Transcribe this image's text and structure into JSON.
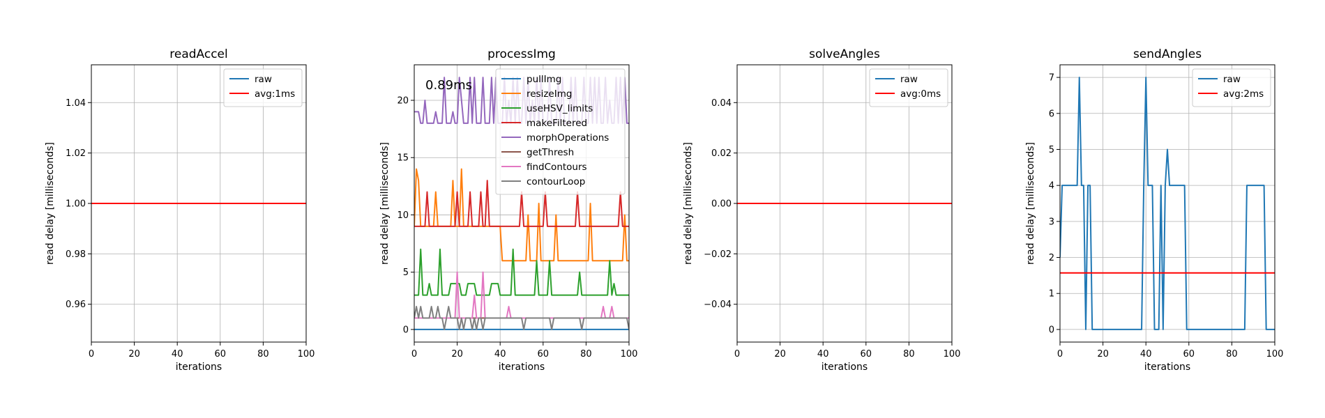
{
  "chart_data": [
    {
      "type": "line",
      "title": "readAccel",
      "xlabel": "iterations",
      "ylabel": "read delay [milliseconds]",
      "xlim": [
        0,
        100
      ],
      "ylim": [
        0.945,
        1.055
      ],
      "xticks": [
        0,
        20,
        40,
        60,
        80,
        100
      ],
      "yticks": [
        0.96,
        0.98,
        1.0,
        1.02,
        1.04
      ],
      "ytick_labels": [
        "0.96",
        "0.98",
        "1.00",
        "1.02",
        "1.04"
      ],
      "grid": true,
      "legend_position": "top-right",
      "series": [
        {
          "name": "raw",
          "color": "#1f77b4",
          "x": [],
          "values": []
        },
        {
          "name": "avg:1ms",
          "color": "#ff0000",
          "hline": 1.0
        }
      ]
    },
    {
      "type": "line",
      "title": "processImg",
      "xlabel": "iterations",
      "ylabel": "read delay [milliseconds]",
      "xlim": [
        0,
        100
      ],
      "ylim": [
        -1.1,
        23.1
      ],
      "xticks": [
        0,
        20,
        40,
        60,
        80,
        100
      ],
      "yticks": [
        0,
        5,
        10,
        15,
        20
      ],
      "ytick_labels": [
        "0",
        "5",
        "10",
        "15",
        "20"
      ],
      "grid": true,
      "legend_position": "top-right",
      "annotation": "0.89ms",
      "series": [
        {
          "name": "pullImg",
          "color": "#1f77b4",
          "values": [
            0,
            0,
            0,
            0,
            0,
            0,
            0,
            0,
            0,
            0,
            0,
            0,
            0,
            0,
            0,
            0,
            0,
            0,
            0,
            0,
            0,
            0,
            0,
            0,
            0,
            0,
            0,
            0,
            0,
            0,
            0,
            0,
            0,
            0,
            0,
            0,
            0,
            0,
            0,
            0,
            0,
            0,
            0,
            0,
            0,
            0,
            0,
            0,
            0,
            0,
            0,
            0,
            0,
            0,
            0,
            0,
            0,
            0,
            0,
            0,
            0,
            0,
            0,
            0,
            0,
            0,
            0,
            0,
            0,
            0,
            0,
            0,
            0,
            0,
            0,
            0,
            0,
            0,
            0,
            0,
            0,
            0,
            0,
            0,
            0,
            0,
            0,
            0,
            0,
            0,
            0,
            0,
            0,
            0,
            0,
            0,
            0,
            0,
            0,
            0,
            0
          ]
        },
        {
          "name": "resizeImg",
          "color": "#ff7f0e",
          "values": [
            9,
            14,
            13,
            9,
            9,
            9,
            9,
            9,
            9,
            9,
            12,
            9,
            9,
            9,
            9,
            9,
            9,
            9,
            13,
            9,
            9,
            9,
            14,
            9,
            9,
            9,
            9,
            9,
            9,
            9,
            9,
            9,
            9,
            9,
            9,
            9,
            9,
            9,
            9,
            9,
            9,
            6,
            6,
            6,
            6,
            6,
            6,
            6,
            6,
            6,
            6,
            6,
            6,
            10,
            6,
            6,
            6,
            6,
            11,
            6,
            6,
            6,
            6,
            6,
            6,
            6,
            10,
            6,
            6,
            6,
            6,
            6,
            6,
            6,
            6,
            6,
            6,
            6,
            6,
            6,
            6,
            6,
            11,
            6,
            6,
            6,
            6,
            6,
            6,
            6,
            6,
            6,
            6,
            6,
            6,
            6,
            6,
            6,
            10,
            6,
            6
          ]
        },
        {
          "name": "useHSV_limits",
          "color": "#2ca02c",
          "values": [
            3,
            3,
            3,
            7,
            3,
            3,
            3,
            4,
            3,
            3,
            3,
            3,
            7,
            3,
            3,
            3,
            3,
            4,
            4,
            4,
            4,
            4,
            3,
            3,
            3,
            4,
            4,
            4,
            4,
            3,
            3,
            3,
            3,
            3,
            3,
            3,
            4,
            4,
            4,
            4,
            3,
            3,
            3,
            3,
            3,
            3,
            7,
            3,
            3,
            3,
            3,
            3,
            3,
            3,
            3,
            3,
            3,
            6,
            3,
            3,
            3,
            3,
            3,
            6,
            3,
            3,
            3,
            3,
            3,
            3,
            3,
            3,
            3,
            3,
            3,
            3,
            3,
            5,
            3,
            3,
            3,
            3,
            3,
            3,
            3,
            3,
            3,
            3,
            3,
            3,
            3,
            6,
            3,
            4,
            3,
            3,
            3,
            3,
            3,
            3,
            3
          ]
        },
        {
          "name": "makeFiltered",
          "color": "#d62728",
          "values": [
            9,
            9,
            9,
            9,
            9,
            9,
            12,
            9,
            9,
            9,
            9,
            9,
            9,
            9,
            9,
            9,
            9,
            9,
            9,
            9,
            12,
            9,
            9,
            9,
            9,
            9,
            12,
            9,
            9,
            9,
            9,
            12,
            9,
            9,
            13,
            9,
            9,
            9,
            9,
            9,
            9,
            9,
            9,
            9,
            9,
            9,
            9,
            9,
            9,
            9,
            12,
            9,
            9,
            9,
            9,
            9,
            9,
            9,
            9,
            9,
            9,
            12,
            9,
            9,
            9,
            9,
            9,
            9,
            9,
            9,
            9,
            9,
            9,
            9,
            9,
            9,
            12,
            9,
            9,
            9,
            9,
            9,
            9,
            9,
            9,
            9,
            9,
            9,
            9,
            9,
            9,
            9,
            9,
            9,
            9,
            9,
            12,
            9,
            9,
            9,
            9
          ]
        },
        {
          "name": "morphOperations",
          "color": "#9467bd",
          "values": [
            19,
            19,
            19,
            18,
            18,
            20,
            18,
            18,
            18,
            18,
            19,
            18,
            18,
            18,
            22,
            18,
            18,
            18,
            19,
            18,
            18,
            22,
            20,
            18,
            18,
            18,
            22,
            18,
            22,
            18,
            18,
            18,
            22,
            18,
            18,
            18,
            22,
            18,
            22,
            18,
            18,
            18,
            22,
            18,
            20,
            18,
            22,
            18,
            22,
            18,
            18,
            22,
            18,
            22,
            18,
            20,
            18,
            22,
            18,
            22,
            18,
            18,
            18,
            22,
            18,
            18,
            18,
            22,
            18,
            22,
            18,
            18,
            18,
            22,
            18,
            22,
            18,
            18,
            18,
            22,
            18,
            18,
            22,
            18,
            22,
            18,
            22,
            18,
            18,
            22,
            18,
            20,
            18,
            18,
            22,
            18,
            22,
            18,
            22,
            18,
            18
          ]
        },
        {
          "name": "getThresh",
          "color": "#8c564b",
          "values": [
            1,
            1,
            1,
            1,
            1,
            1,
            1,
            1,
            1,
            1,
            1,
            1,
            1,
            1,
            1,
            1,
            1,
            1,
            1,
            1,
            1,
            1,
            1,
            1,
            1,
            1,
            1,
            1,
            1,
            1,
            1,
            1,
            1,
            1,
            1,
            1,
            1,
            1,
            1,
            1,
            1,
            1,
            1,
            1,
            1,
            1,
            1,
            1,
            1,
            1,
            1,
            1,
            1,
            1,
            1,
            1,
            1,
            1,
            1,
            1,
            1,
            1,
            1,
            1,
            1,
            1,
            1,
            1,
            1,
            1,
            1,
            1,
            1,
            1,
            1,
            1,
            1,
            1,
            1,
            1,
            1,
            1,
            1,
            1,
            1,
            1,
            1,
            1,
            1,
            1,
            1,
            1,
            1,
            1,
            1,
            1,
            1,
            1,
            1,
            1,
            1
          ]
        },
        {
          "name": "findContours",
          "color": "#e377c2",
          "values": [
            1,
            1,
            1,
            1,
            1,
            1,
            1,
            1,
            1,
            1,
            1,
            1,
            1,
            1,
            1,
            1,
            1,
            1,
            1,
            1,
            5,
            1,
            1,
            1,
            1,
            1,
            1,
            1,
            3,
            1,
            1,
            1,
            5,
            1,
            1,
            1,
            1,
            1,
            1,
            1,
            1,
            1,
            1,
            1,
            2,
            1,
            1,
            1,
            1,
            1,
            1,
            1,
            1,
            1,
            1,
            1,
            1,
            1,
            1,
            1,
            1,
            1,
            1,
            1,
            1,
            1,
            1,
            1,
            1,
            1,
            1,
            1,
            1,
            1,
            1,
            1,
            1,
            1,
            1,
            1,
            1,
            1,
            1,
            1,
            1,
            1,
            1,
            1,
            2,
            1,
            1,
            1,
            2,
            1,
            1,
            1,
            1,
            1,
            1,
            1,
            1
          ]
        },
        {
          "name": "contourLoop",
          "color": "#7f7f7f",
          "values": [
            1,
            2,
            1,
            2,
            1,
            1,
            1,
            1,
            2,
            1,
            1,
            2,
            1,
            1,
            0,
            1,
            2,
            1,
            1,
            1,
            1,
            0,
            1,
            0,
            1,
            1,
            1,
            0,
            1,
            0,
            1,
            1,
            0,
            1,
            1,
            1,
            1,
            1,
            1,
            1,
            1,
            1,
            1,
            1,
            1,
            1,
            1,
            1,
            1,
            1,
            1,
            0,
            1,
            1,
            1,
            1,
            1,
            1,
            1,
            1,
            1,
            1,
            1,
            1,
            0,
            1,
            1,
            1,
            1,
            1,
            1,
            1,
            1,
            1,
            1,
            1,
            1,
            1,
            0,
            1,
            1,
            1,
            1,
            1,
            1,
            1,
            1,
            1,
            1,
            1,
            1,
            1,
            1,
            1,
            1,
            1,
            1,
            1,
            1,
            1,
            0
          ]
        }
      ]
    },
    {
      "type": "line",
      "title": "solveAngles",
      "xlabel": "iterations",
      "ylabel": "read delay [milliseconds]",
      "xlim": [
        0,
        100
      ],
      "ylim": [
        -0.055,
        0.055
      ],
      "xticks": [
        0,
        20,
        40,
        60,
        80,
        100
      ],
      "yticks": [
        -0.04,
        -0.02,
        0.0,
        0.02,
        0.04
      ],
      "ytick_labels": [
        "−0.04",
        "−0.02",
        "0.00",
        "0.02",
        "0.04"
      ],
      "grid": true,
      "legend_position": "top-right",
      "series": [
        {
          "name": "raw",
          "color": "#1f77b4",
          "x": [],
          "values": []
        },
        {
          "name": "avg:0ms",
          "color": "#ff0000",
          "hline": 0.0
        }
      ]
    },
    {
      "type": "line",
      "title": "sendAngles",
      "xlabel": "iterations",
      "ylabel": "read delay [milliseconds]",
      "xlim": [
        0,
        100
      ],
      "ylim": [
        -0.35,
        7.35
      ],
      "xticks": [
        0,
        20,
        40,
        60,
        80,
        100
      ],
      "yticks": [
        0,
        1,
        2,
        3,
        4,
        5,
        6,
        7
      ],
      "ytick_labels": [
        "0",
        "1",
        "2",
        "3",
        "4",
        "5",
        "6",
        "7"
      ],
      "grid": true,
      "legend_position": "top-right",
      "series": [
        {
          "name": "raw",
          "color": "#1f77b4",
          "x": [
            0,
            1,
            2,
            3,
            4,
            5,
            6,
            7,
            8,
            9,
            10,
            11,
            12,
            13,
            14,
            15,
            16,
            17,
            18,
            19,
            20,
            21,
            22,
            23,
            24,
            25,
            26,
            27,
            28,
            29,
            30,
            31,
            32,
            33,
            34,
            35,
            36,
            37,
            38,
            39,
            40,
            41,
            42,
            43,
            44,
            45,
            46,
            47,
            48,
            49,
            50,
            51,
            52,
            53,
            54,
            55,
            56,
            57,
            58,
            59,
            60,
            61,
            62,
            63,
            64,
            65,
            66,
            67,
            68,
            69,
            70,
            71,
            72,
            73,
            74,
            75,
            76,
            77,
            78,
            79,
            80,
            81,
            82,
            83,
            84,
            85,
            86,
            87,
            88,
            89,
            90,
            91,
            92,
            93,
            94,
            95,
            96,
            97,
            98,
            99,
            100
          ],
          "values": [
            2,
            4,
            4,
            4,
            4,
            4,
            4,
            4,
            4,
            7,
            4,
            4,
            0,
            4,
            4,
            0,
            0,
            0,
            0,
            0,
            0,
            0,
            0,
            0,
            0,
            0,
            0,
            0,
            0,
            0,
            0,
            0,
            0,
            0,
            0,
            0,
            0,
            0,
            0,
            4,
            7,
            4,
            4,
            4,
            0,
            0,
            0,
            4,
            0,
            4,
            5,
            4,
            4,
            4,
            4,
            4,
            4,
            4,
            4,
            0,
            0,
            0,
            0,
            0,
            0,
            0,
            0,
            0,
            0,
            0,
            0,
            0,
            0,
            0,
            0,
            0,
            0,
            0,
            0,
            0,
            0,
            0,
            0,
            0,
            0,
            0,
            0,
            4,
            4,
            4,
            4,
            4,
            4,
            4,
            4,
            4,
            0,
            0,
            0,
            0,
            0
          ]
        },
        {
          "name": "avg:2ms",
          "color": "#ff0000",
          "hline": 1.57
        }
      ]
    }
  ]
}
